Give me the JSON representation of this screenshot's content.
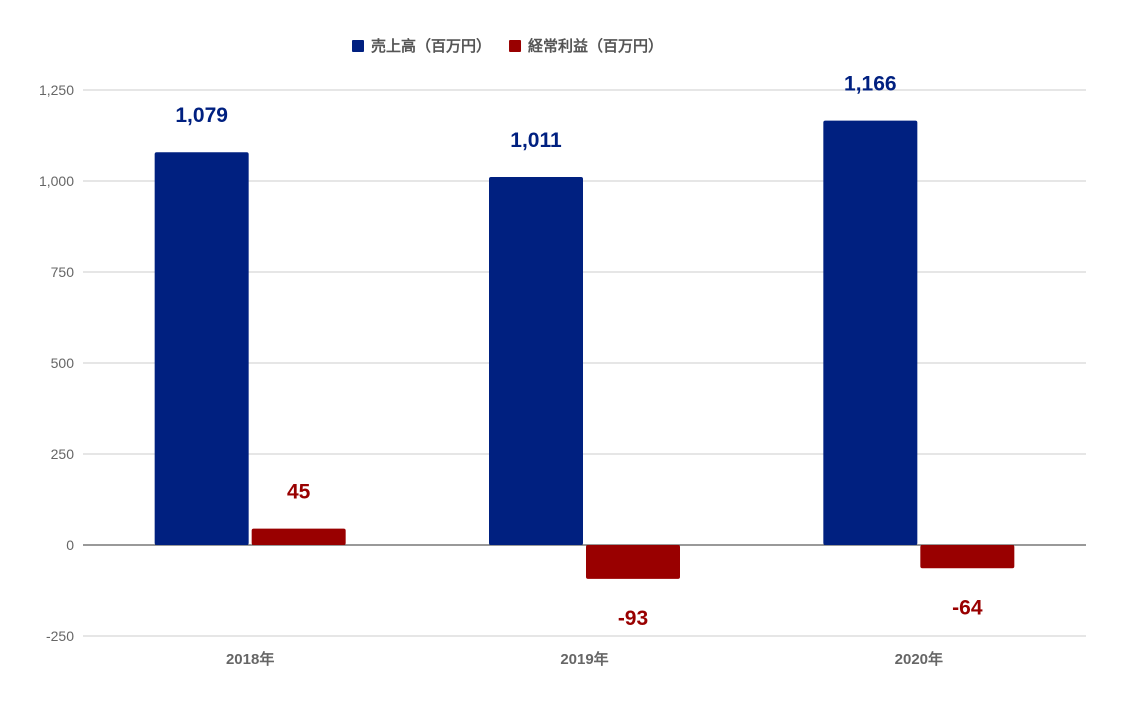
{
  "chart_data": {
    "type": "bar",
    "categories": [
      "2018年",
      "2019年",
      "2020年"
    ],
    "series": [
      {
        "name": "売上高（百万円）",
        "values": [
          1079,
          1011,
          1166
        ],
        "labels": [
          "1,079",
          "1,011",
          "1,166"
        ],
        "color": "#002080"
      },
      {
        "name": "経常利益（百万円）",
        "values": [
          45,
          -93,
          -64
        ],
        "labels": [
          "45",
          "-93",
          "-64"
        ],
        "color": "#990000"
      }
    ],
    "yticks": [
      -250,
      0,
      250,
      500,
      750,
      1000,
      1250
    ],
    "ytick_labels": [
      "-250",
      "0",
      "250",
      "500",
      "750",
      "1,000",
      "1,250"
    ],
    "ylim": [
      -250,
      1250
    ],
    "grid": true,
    "legend_position": "top",
    "title": "",
    "xlabel": "",
    "ylabel": ""
  }
}
